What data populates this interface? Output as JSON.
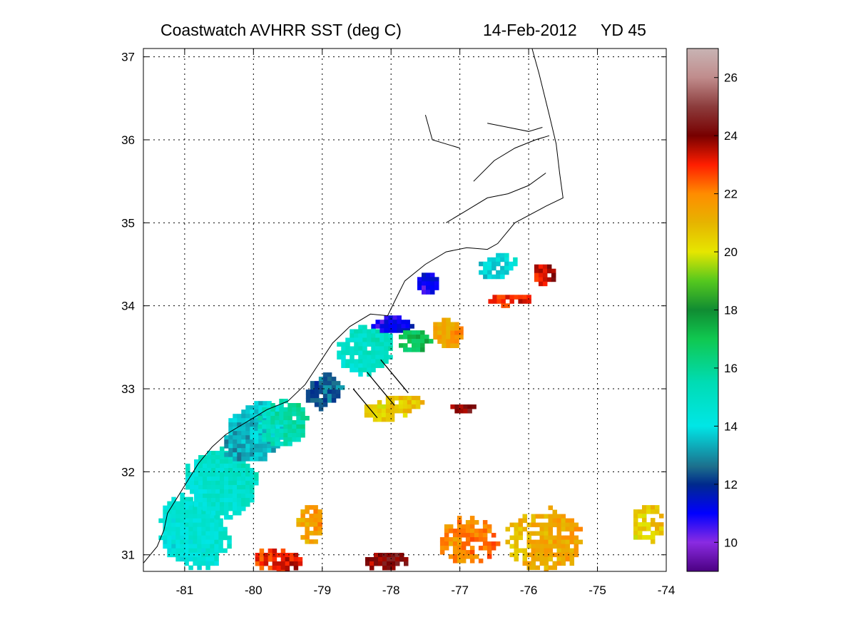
{
  "title": {
    "left": "Coastwatch   AVHRR   SST  (deg C)",
    "date": "14-Feb-2012",
    "yearday": "YD 45"
  },
  "chart_data": {
    "type": "heatmap",
    "xlim": [
      -81.6,
      -74.0
    ],
    "ylim": [
      30.8,
      37.1
    ],
    "x_ticks": [
      {
        "value": -81,
        "label": "-81"
      },
      {
        "value": -80,
        "label": "-80"
      },
      {
        "value": -79,
        "label": "-79"
      },
      {
        "value": -78,
        "label": "-78"
      },
      {
        "value": -77,
        "label": "-77"
      },
      {
        "value": -76,
        "label": "-76"
      },
      {
        "value": -75,
        "label": "-75"
      },
      {
        "value": -74,
        "label": "-74"
      }
    ],
    "y_ticks": [
      {
        "value": 31,
        "label": "31"
      },
      {
        "value": 32,
        "label": "32"
      },
      {
        "value": 33,
        "label": "33"
      },
      {
        "value": 34,
        "label": "34"
      },
      {
        "value": 35,
        "label": "35"
      },
      {
        "value": 36,
        "label": "36"
      },
      {
        "value": 37,
        "label": "37"
      }
    ],
    "grid": true,
    "colorbar": {
      "range": [
        9,
        27
      ],
      "ticks": [
        {
          "value": 10,
          "label": "10"
        },
        {
          "value": 12,
          "label": "12"
        },
        {
          "value": 14,
          "label": "14"
        },
        {
          "value": 16,
          "label": "16"
        },
        {
          "value": 18,
          "label": "18"
        },
        {
          "value": 20,
          "label": "20"
        },
        {
          "value": 22,
          "label": "22"
        },
        {
          "value": 24,
          "label": "24"
        },
        {
          "value": 26,
          "label": "26"
        }
      ],
      "stops": [
        {
          "v": 9.0,
          "color": "#4b0082"
        },
        {
          "v": 10.0,
          "color": "#8a2be2"
        },
        {
          "v": 11.0,
          "color": "#0000ff"
        },
        {
          "v": 12.0,
          "color": "#002a8c"
        },
        {
          "v": 12.6,
          "color": "#1c6e8c"
        },
        {
          "v": 14.0,
          "color": "#00e6e6"
        },
        {
          "v": 15.5,
          "color": "#00dcb4"
        },
        {
          "v": 17.0,
          "color": "#10c850"
        },
        {
          "v": 18.0,
          "color": "#108c32"
        },
        {
          "v": 19.0,
          "color": "#55c81e"
        },
        {
          "v": 20.0,
          "color": "#e6e600"
        },
        {
          "v": 21.0,
          "color": "#e6b400"
        },
        {
          "v": 22.0,
          "color": "#ff8c00"
        },
        {
          "v": 23.0,
          "color": "#ff1e00"
        },
        {
          "v": 24.0,
          "color": "#780000"
        },
        {
          "v": 25.0,
          "color": "#8c3c3c"
        },
        {
          "v": 26.0,
          "color": "#c08c8c"
        },
        {
          "v": 27.0,
          "color": "#c8b4b4"
        }
      ]
    },
    "sst_regions": [
      {
        "lon": -80.9,
        "lat": 31.3,
        "rx": 0.5,
        "ry": 0.5,
        "sst": 14.5,
        "rot": -40,
        "density": 0.98
      },
      {
        "lon": -80.5,
        "lat": 31.9,
        "rx": 0.55,
        "ry": 0.45,
        "sst": 14.8,
        "rot": -40,
        "density": 0.95
      },
      {
        "lon": -80.0,
        "lat": 32.5,
        "rx": 0.55,
        "ry": 0.35,
        "sst": 13.5,
        "rot": -35,
        "density": 0.92
      },
      {
        "lon": -79.6,
        "lat": 32.6,
        "rx": 0.4,
        "ry": 0.3,
        "sst": 15.5,
        "rot": -35,
        "density": 0.85
      },
      {
        "lon": -79.0,
        "lat": 33.0,
        "rx": 0.3,
        "ry": 0.2,
        "sst": 12.5,
        "rot": -35,
        "density": 0.9
      },
      {
        "lon": -78.4,
        "lat": 33.5,
        "rx": 0.45,
        "ry": 0.3,
        "sst": 15.0,
        "rot": -30,
        "density": 0.9
      },
      {
        "lon": -78.0,
        "lat": 33.8,
        "rx": 0.35,
        "ry": 0.1,
        "sst": 11.0,
        "rot": 0,
        "density": 0.95
      },
      {
        "lon": -77.5,
        "lat": 34.3,
        "rx": 0.18,
        "ry": 0.15,
        "sst": 11.0,
        "rot": -40,
        "density": 0.9
      },
      {
        "lon": -77.7,
        "lat": 33.6,
        "rx": 0.25,
        "ry": 0.15,
        "sst": 17.0,
        "rot": 0,
        "density": 0.85
      },
      {
        "lon": -77.2,
        "lat": 33.7,
        "rx": 0.25,
        "ry": 0.18,
        "sst": 21.5,
        "rot": 20,
        "density": 0.9
      },
      {
        "lon": -78.0,
        "lat": 32.8,
        "rx": 0.45,
        "ry": 0.15,
        "sst": 20.5,
        "rot": -10,
        "density": 0.85
      },
      {
        "lon": -79.2,
        "lat": 31.4,
        "rx": 0.2,
        "ry": 0.25,
        "sst": 21.5,
        "rot": 0,
        "density": 0.85
      },
      {
        "lon": -79.7,
        "lat": 30.95,
        "rx": 0.4,
        "ry": 0.15,
        "sst": 23.0,
        "rot": 0,
        "density": 0.9
      },
      {
        "lon": -78.1,
        "lat": 30.95,
        "rx": 0.4,
        "ry": 0.1,
        "sst": 24.0,
        "rot": 0,
        "density": 0.9
      },
      {
        "lon": -76.9,
        "lat": 31.2,
        "rx": 0.45,
        "ry": 0.3,
        "sst": 22.0,
        "rot": 0,
        "density": 0.8
      },
      {
        "lon": -75.8,
        "lat": 31.2,
        "rx": 0.6,
        "ry": 0.4,
        "sst": 21.2,
        "rot": 0,
        "density": 0.75
      },
      {
        "lon": -74.3,
        "lat": 31.4,
        "rx": 0.25,
        "ry": 0.25,
        "sst": 20.5,
        "rot": 0,
        "density": 0.7
      },
      {
        "lon": -76.5,
        "lat": 34.5,
        "rx": 0.35,
        "ry": 0.15,
        "sst": 14.0,
        "rot": -20,
        "density": 0.75
      },
      {
        "lon": -76.3,
        "lat": 34.1,
        "rx": 0.35,
        "ry": 0.08,
        "sst": 23.0,
        "rot": 0,
        "density": 0.85
      },
      {
        "lon": -75.8,
        "lat": 34.4,
        "rx": 0.18,
        "ry": 0.15,
        "sst": 23.5,
        "rot": 0,
        "density": 0.9
      },
      {
        "lon": -77.0,
        "lat": 32.8,
        "rx": 0.2,
        "ry": 0.06,
        "sst": 24.0,
        "rot": 0,
        "density": 0.9
      }
    ],
    "route_lines": [
      [
        [
          -78.55,
          33.0
        ],
        [
          -78.2,
          32.65
        ]
      ],
      [
        [
          -78.35,
          33.2
        ],
        [
          -77.95,
          32.8
        ]
      ],
      [
        [
          -78.15,
          33.35
        ],
        [
          -77.75,
          32.95
        ]
      ]
    ],
    "coastline": [
      [
        -81.6,
        30.9
      ],
      [
        -81.4,
        31.1
      ],
      [
        -81.3,
        31.3
      ],
      [
        -81.25,
        31.5
      ],
      [
        -81.1,
        31.7
      ],
      [
        -80.95,
        31.9
      ],
      [
        -80.8,
        32.1
      ],
      [
        -80.6,
        32.3
      ],
      [
        -80.4,
        32.45
      ],
      [
        -80.1,
        32.6
      ],
      [
        -79.8,
        32.75
      ],
      [
        -79.5,
        32.85
      ],
      [
        -79.25,
        33.05
      ],
      [
        -79.05,
        33.3
      ],
      [
        -78.85,
        33.55
      ],
      [
        -78.6,
        33.75
      ],
      [
        -78.3,
        33.9
      ],
      [
        -78.05,
        33.88
      ],
      [
        -77.95,
        34.05
      ],
      [
        -77.8,
        34.3
      ],
      [
        -77.5,
        34.5
      ],
      [
        -77.2,
        34.65
      ],
      [
        -76.9,
        34.7
      ],
      [
        -76.6,
        34.68
      ],
      [
        -76.45,
        34.75
      ],
      [
        -76.2,
        35.0
      ],
      [
        -75.75,
        35.2
      ],
      [
        -75.5,
        35.3
      ],
      [
        -75.55,
        35.6
      ],
      [
        -75.6,
        35.95
      ],
      [
        -75.7,
        36.3
      ],
      [
        -75.85,
        36.8
      ],
      [
        -75.95,
        37.1
      ]
    ],
    "sounds": [
      [
        [
          -77.2,
          35.0
        ],
        [
          -76.9,
          35.15
        ],
        [
          -76.6,
          35.3
        ],
        [
          -76.3,
          35.35
        ],
        [
          -76.0,
          35.45
        ],
        [
          -75.75,
          35.6
        ]
      ],
      [
        [
          -76.8,
          35.5
        ],
        [
          -76.5,
          35.75
        ],
        [
          -76.2,
          35.9
        ],
        [
          -75.9,
          36.0
        ],
        [
          -75.7,
          36.05
        ]
      ],
      [
        [
          -76.6,
          36.2
        ],
        [
          -76.3,
          36.15
        ],
        [
          -76.0,
          36.1
        ],
        [
          -75.8,
          36.15
        ]
      ],
      [
        [
          -77.5,
          36.3
        ],
        [
          -77.4,
          36.0
        ],
        [
          -77.2,
          35.95
        ],
        [
          -77.0,
          35.9
        ]
      ]
    ]
  }
}
